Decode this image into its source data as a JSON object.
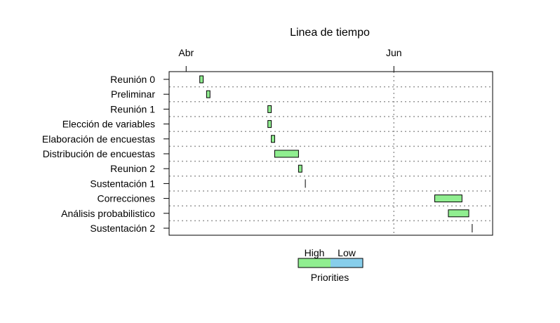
{
  "chart_data": {
    "type": "gantt",
    "title": "Linea de tiempo",
    "xlabel": "",
    "ylabel": "",
    "x_axis": {
      "position": "top",
      "range": [
        "2020-03-27",
        "2020-06-30"
      ],
      "ticks": [
        {
          "label": "Abr",
          "date": "2020-04-01"
        },
        {
          "label": "Jun",
          "date": "2020-06-01"
        }
      ]
    },
    "vertical_gridline_dates": [
      "2020-06-01"
    ],
    "horizontal_gridlines": true,
    "tasks": [
      {
        "name": "Reunión 0",
        "start": "2020-04-05",
        "end": "2020-04-06",
        "priority": "High"
      },
      {
        "name": "Preliminar",
        "start": "2020-04-07",
        "end": "2020-04-08",
        "priority": "High"
      },
      {
        "name": "Reunión 1",
        "start": "2020-04-25",
        "end": "2020-04-26",
        "priority": "High"
      },
      {
        "name": "Elección de variables",
        "start": "2020-04-25",
        "end": "2020-04-26",
        "priority": "High"
      },
      {
        "name": "Elaboración de encuestas",
        "start": "2020-04-26",
        "end": "2020-04-27",
        "priority": "High"
      },
      {
        "name": "Distribución de encuestas",
        "start": "2020-04-27",
        "end": "2020-05-04",
        "priority": "High"
      },
      {
        "name": "Reunion 2",
        "start": "2020-05-04",
        "end": "2020-05-05",
        "priority": "High"
      },
      {
        "name": "Sustentación 1",
        "start": "2020-05-06",
        "end": "2020-05-06",
        "priority": "High"
      },
      {
        "name": "Correcciones",
        "start": "2020-06-13",
        "end": "2020-06-21",
        "priority": "High"
      },
      {
        "name": "Análisis probabilistico",
        "start": "2020-06-17",
        "end": "2020-06-23",
        "priority": "High"
      },
      {
        "name": "Sustentación 2",
        "start": "2020-06-24",
        "end": "2020-06-24",
        "priority": "High"
      }
    ],
    "legend": {
      "title": "Priorities",
      "placement": "bottom-center",
      "items": [
        {
          "label": "High",
          "color": "#90EE90"
        },
        {
          "label": "Low",
          "color": "#87CEEB"
        }
      ]
    },
    "colors": {
      "High": "#90EE90",
      "Low": "#87CEEB"
    }
  }
}
